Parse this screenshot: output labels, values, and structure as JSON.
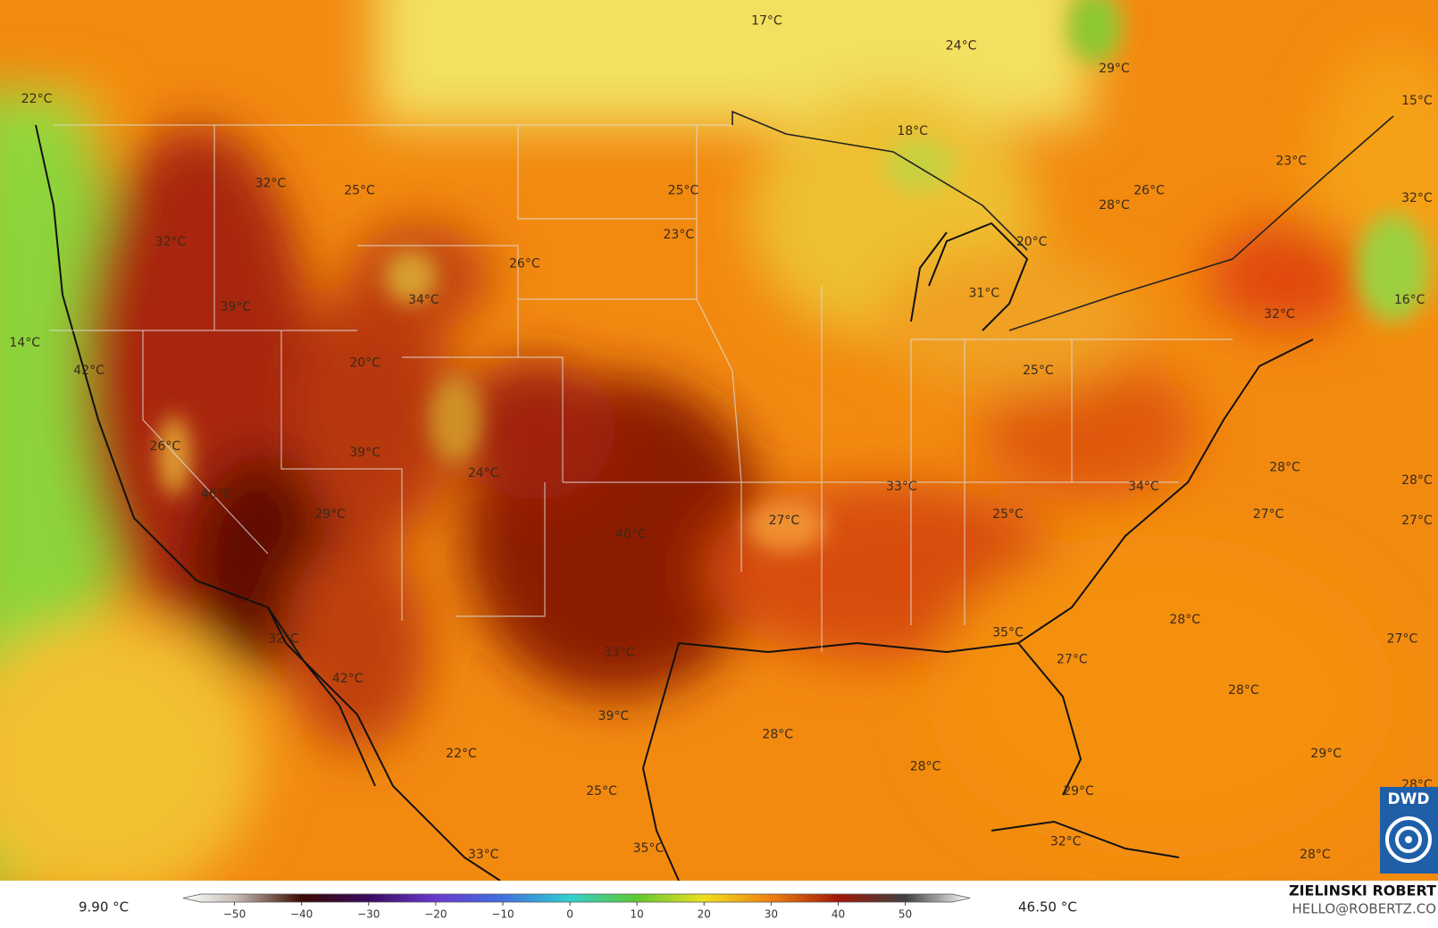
{
  "map": {
    "labels": [
      "17°C",
      "24°C",
      "29°C",
      "15°C",
      "22°C",
      "18°C",
      "23°C",
      "32°C",
      "25°C",
      "25°C",
      "26°C",
      "32°C",
      "28°C",
      "23°C",
      "32°C",
      "20°C",
      "26°C",
      "34°C",
      "31°C",
      "16°C",
      "39°C",
      "32°C",
      "14°C",
      "20°C",
      "42°C",
      "25°C",
      "26°C",
      "39°C",
      "24°C",
      "28°C",
      "28°C",
      "46°C",
      "33°C",
      "34°C",
      "29°C",
      "25°C",
      "27°C",
      "27°C",
      "27°C",
      "40°C",
      "28°C",
      "35°C",
      "32°C",
      "27°C",
      "33°C",
      "27°C",
      "42°C",
      "28°C",
      "39°C",
      "28°C",
      "22°C",
      "29°C",
      "28°C",
      "28°C",
      "25°C",
      "29°C",
      "32°C",
      "33°C",
      "35°C",
      "28°C"
    ],
    "logo": "DWD"
  },
  "colorbar": {
    "lim": [
      -55,
      57
    ],
    "ticks": [
      {
        "value": -50,
        "label": "−50"
      },
      {
        "value": -40,
        "label": "−40"
      },
      {
        "value": -30,
        "label": "−30"
      },
      {
        "value": -20,
        "label": "−20"
      },
      {
        "value": -10,
        "label": "−10"
      },
      0,
      10,
      20,
      30,
      40,
      50
    ],
    "min_label": "9.90 °C",
    "max_label": "46.50 °C"
  },
  "credit": {
    "author": "ZIELINSKI ROBERT",
    "contact": "HELLO@ROBERTZ.CO"
  }
}
